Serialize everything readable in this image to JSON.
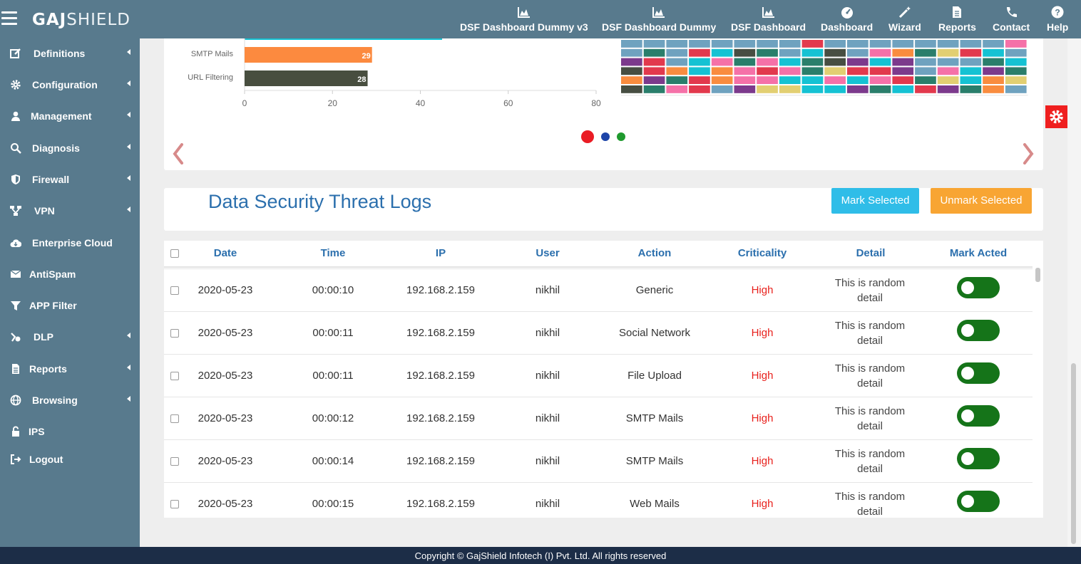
{
  "brand": {
    "bold": "GAJ",
    "light": "SHIELD"
  },
  "topnav": [
    {
      "label": "DSF Dashboard Dummy v3",
      "icon": "area-chart-icon"
    },
    {
      "label": "DSF Dashboard Dummy",
      "icon": "area-chart-icon"
    },
    {
      "label": "DSF Dashboard",
      "icon": "area-chart-icon"
    },
    {
      "label": "Dashboard",
      "icon": "tachometer-icon"
    },
    {
      "label": "Wizard",
      "icon": "magic-wand-icon"
    },
    {
      "label": "Reports",
      "icon": "document-icon"
    },
    {
      "label": "Contact",
      "icon": "phone-icon"
    },
    {
      "label": "Help",
      "icon": "question-icon"
    }
  ],
  "sidebar": [
    {
      "label": "Definitions",
      "icon": "edit-icon",
      "submenu": true
    },
    {
      "label": "Configuration",
      "icon": "gear-icon",
      "submenu": true
    },
    {
      "label": "Management",
      "icon": "user-icon",
      "submenu": true
    },
    {
      "label": "Diagnosis",
      "icon": "search-icon",
      "submenu": true
    },
    {
      "label": "Firewall",
      "icon": "shield-icon",
      "submenu": true
    },
    {
      "label": "VPN",
      "icon": "network-icon",
      "submenu": true
    },
    {
      "label": "Enterprise Cloud",
      "icon": "cloud-icon",
      "submenu": false
    },
    {
      "label": "AntiSpam",
      "icon": "envelope-icon",
      "submenu": false
    },
    {
      "label": "APP Filter",
      "icon": "filter-icon",
      "submenu": false
    },
    {
      "label": "DLP",
      "icon": "dlp-icon",
      "submenu": true
    },
    {
      "label": "Reports",
      "icon": "file-icon",
      "submenu": true
    },
    {
      "label": "Browsing",
      "icon": "globe-icon",
      "submenu": true
    },
    {
      "label": "IPS",
      "icon": "lock-icon",
      "submenu": false
    },
    {
      "label": "Logout",
      "icon": "sign-out-icon",
      "submenu": false
    }
  ],
  "chart_data": [
    {
      "type": "bar",
      "orientation": "horizontal",
      "categories": [
        "SMTP Mails",
        "URL Filtering"
      ],
      "values": [
        29,
        28
      ],
      "colors": [
        "#fc8a3f",
        "#484e3f"
      ],
      "xlim": [
        0,
        80
      ],
      "xticks": [
        0,
        20,
        40,
        60,
        80
      ],
      "grid": false
    },
    {
      "type": "heatmap",
      "columns": 18,
      "palette": [
        "#6fa2bf",
        "#2a7e6b",
        "#e2394d",
        "#15c2d3",
        "#474e42",
        "#f98c3f",
        "#f571a8",
        "#7c3a8c",
        "#e2cf72"
      ],
      "cells": [
        [
          0,
          0,
          0,
          0,
          0,
          0,
          0,
          0,
          2,
          0,
          0,
          0,
          0,
          0,
          0,
          0,
          0,
          6
        ],
        [
          0,
          1,
          0,
          2,
          3,
          4,
          1,
          0,
          3,
          4,
          0,
          6,
          5,
          1,
          8,
          2,
          3,
          0
        ],
        [
          7,
          2,
          0,
          3,
          6,
          1,
          6,
          3,
          1,
          4,
          7,
          3,
          7,
          0,
          0,
          0,
          1,
          3
        ],
        [
          4,
          2,
          5,
          3,
          5,
          6,
          2,
          6,
          1,
          8,
          2,
          2,
          7,
          0,
          6,
          3,
          7,
          1
        ],
        [
          5,
          7,
          1,
          2,
          5,
          6,
          6,
          3,
          3,
          6,
          3,
          6,
          2,
          1,
          8,
          3,
          5,
          8
        ],
        [
          4,
          1,
          6,
          2,
          0,
          7,
          8,
          8,
          3,
          3,
          7,
          1,
          3,
          2,
          7,
          1,
          5,
          0
        ]
      ]
    }
  ],
  "carousel": {
    "dots": [
      "#ea1c24",
      "#1d44a8",
      "#1f9a2e"
    ]
  },
  "section": {
    "title": "Data Security Threat Logs",
    "mark_selected": "Mark Selected",
    "unmark_selected": "Unmark Selected"
  },
  "table": {
    "columns": [
      "Date",
      "Time",
      "IP",
      "User",
      "Action",
      "Criticality",
      "Detail",
      "Mark Acted"
    ],
    "rows": [
      {
        "date": "2020-05-23",
        "time": "00:00:10",
        "ip": "192.168.2.159",
        "user": "nikhil",
        "action": "Generic",
        "criticality": "High",
        "detail": "This is random detail",
        "acted": false
      },
      {
        "date": "2020-05-23",
        "time": "00:00:11",
        "ip": "192.168.2.159",
        "user": "nikhil",
        "action": "Social Network",
        "criticality": "High",
        "detail": "This is random detail",
        "acted": false
      },
      {
        "date": "2020-05-23",
        "time": "00:00:11",
        "ip": "192.168.2.159",
        "user": "nikhil",
        "action": "File Upload",
        "criticality": "High",
        "detail": "This is random detail",
        "acted": false
      },
      {
        "date": "2020-05-23",
        "time": "00:00:12",
        "ip": "192.168.2.159",
        "user": "nikhil",
        "action": "SMTP Mails",
        "criticality": "High",
        "detail": "This is random detail",
        "acted": false
      },
      {
        "date": "2020-05-23",
        "time": "00:00:14",
        "ip": "192.168.2.159",
        "user": "nikhil",
        "action": "SMTP Mails",
        "criticality": "High",
        "detail": "This is random detail",
        "acted": false
      },
      {
        "date": "2020-05-23",
        "time": "00:00:15",
        "ip": "192.168.2.159",
        "user": "nikhil",
        "action": "Web Mails",
        "criticality": "High",
        "detail": "This is random detail",
        "acted": false
      }
    ]
  },
  "footer": "Copyright © GajShield Infotech (I) Pvt. Ltd. All rights reserved",
  "colors": {
    "nav": "#587a8d",
    "title": "#2b6fad",
    "critical": "#e8211d",
    "toggle": "#157419",
    "mark": "#2fbde8",
    "unmark": "#f8a533",
    "footer": "#1c2d47"
  }
}
